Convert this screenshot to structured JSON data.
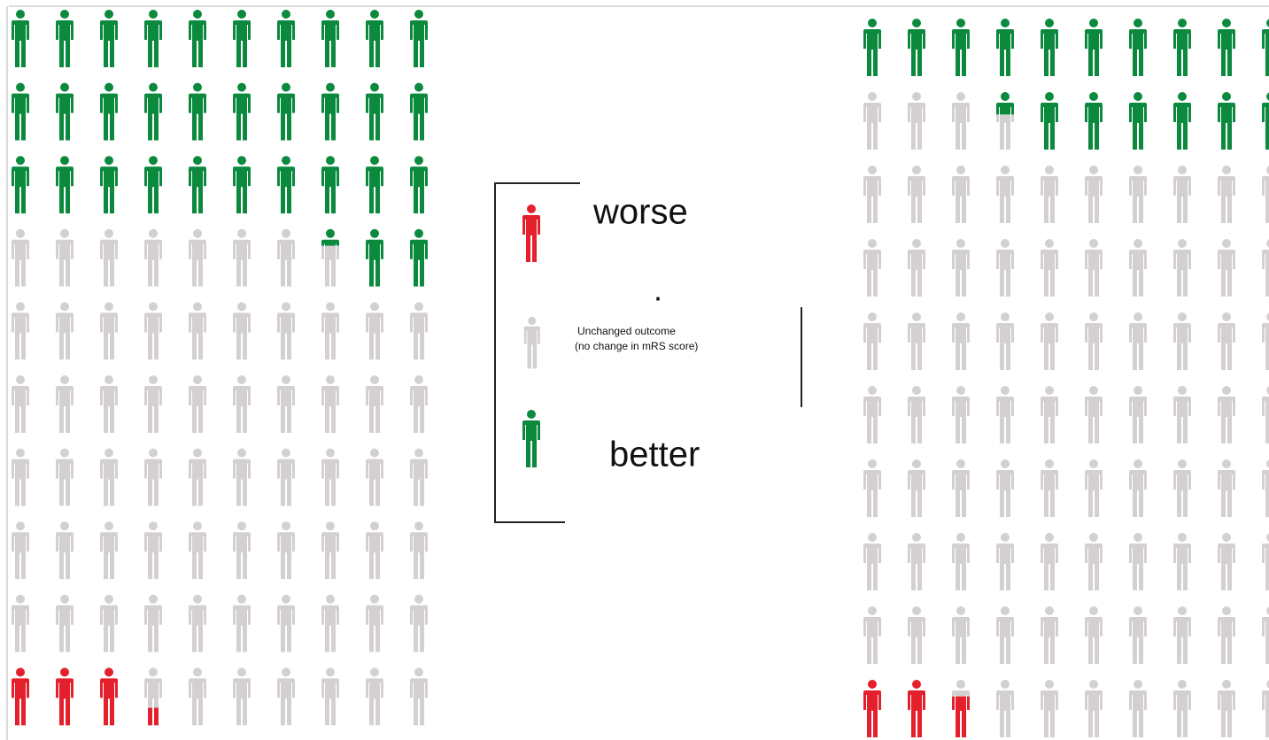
{
  "legend": [
    {
      "label": "worse",
      "color": "#e3202b"
    },
    {
      "label": "Unchanged outcome",
      "sublabel": "(no change in mRS score)",
      "color": "#d4d0d1"
    },
    {
      "label": "better",
      "color": "#0b8a3e"
    }
  ],
  "legend_mark": ".",
  "chart_data": [
    {
      "type": "icon_array",
      "values": [
        3.3,
        64.4,
        32.3
      ]
    },
    {
      "type": "icon_array",
      "values": [
        2.7,
        80.9,
        16.4
      ]
    }
  ]
}
